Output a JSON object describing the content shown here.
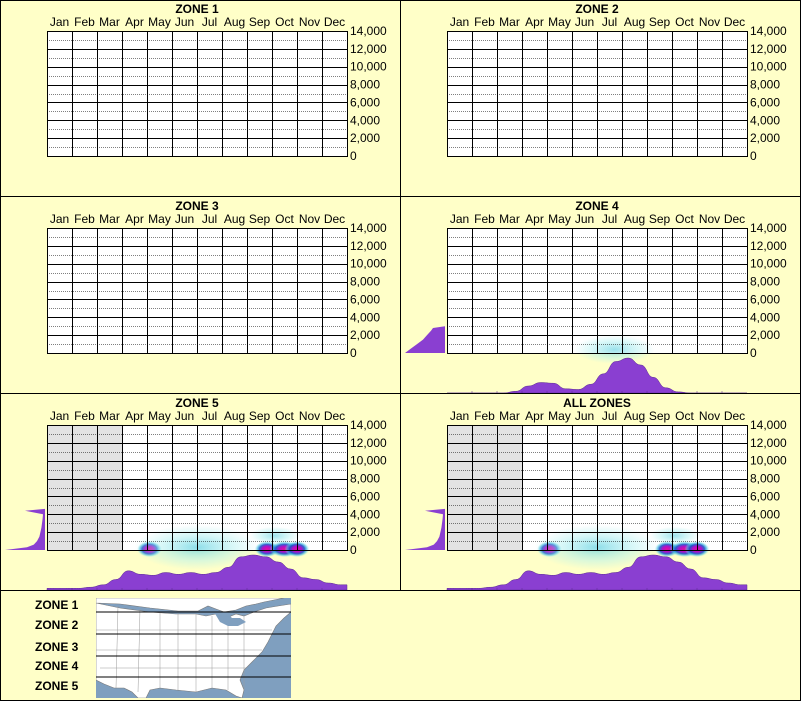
{
  "chart_data": [
    {
      "type": "heatmap",
      "title": "ZONE 1",
      "categories": [
        "Jan",
        "Feb",
        "Mar",
        "Apr",
        "May",
        "Jun",
        "Jul",
        "Aug",
        "Sep",
        "Oct",
        "Nov",
        "Dec"
      ],
      "yticks": [
        "14,000",
        "12,000",
        "10,000",
        "8,000",
        "6,000",
        "4,000",
        "2,000",
        "0"
      ],
      "ylim": [
        0,
        14000
      ],
      "shaded_months": [],
      "elevation_distribution": [],
      "monthly_distribution": [],
      "hotspots": []
    },
    {
      "type": "heatmap",
      "title": "ZONE 2",
      "categories": [
        "Jan",
        "Feb",
        "Mar",
        "Apr",
        "May",
        "Jun",
        "Jul",
        "Aug",
        "Sep",
        "Oct",
        "Nov",
        "Dec"
      ],
      "yticks": [
        "14,000",
        "12,000",
        "10,000",
        "8,000",
        "6,000",
        "4,000",
        "2,000",
        "0"
      ],
      "ylim": [
        0,
        14000
      ],
      "shaded_months": [],
      "elevation_distribution": [],
      "monthly_distribution": [],
      "hotspots": []
    },
    {
      "type": "heatmap",
      "title": "ZONE 3",
      "categories": [
        "Jan",
        "Feb",
        "Mar",
        "Apr",
        "May",
        "Jun",
        "Jul",
        "Aug",
        "Sep",
        "Oct",
        "Nov",
        "Dec"
      ],
      "yticks": [
        "14,000",
        "12,000",
        "10,000",
        "8,000",
        "6,000",
        "4,000",
        "2,000",
        "0"
      ],
      "ylim": [
        0,
        14000
      ],
      "shaded_months": [],
      "elevation_distribution": [],
      "monthly_distribution": [],
      "hotspots": []
    },
    {
      "type": "heatmap",
      "title": "ZONE 4",
      "categories": [
        "Jan",
        "Feb",
        "Mar",
        "Apr",
        "May",
        "Jun",
        "Jul",
        "Aug",
        "Sep",
        "Oct",
        "Nov",
        "Dec"
      ],
      "yticks": [
        "14,000",
        "12,000",
        "10,000",
        "8,000",
        "6,000",
        "4,000",
        "2,000",
        "0"
      ],
      "ylim": [
        0,
        14000
      ],
      "shaded_months": [],
      "elevation_distribution": [
        [
          0,
          1
        ],
        [
          500,
          0.85
        ],
        [
          1000,
          0.7
        ],
        [
          1500,
          0.55
        ],
        [
          2000,
          0.45
        ],
        [
          2500,
          0.35
        ],
        [
          2800,
          0.3
        ],
        [
          3000,
          0
        ]
      ],
      "monthly_distribution": [
        0,
        0,
        0,
        0,
        0,
        0.05,
        0.2,
        0.3,
        0.28,
        0.12,
        0.1,
        0.25,
        0.55,
        0.9,
        1,
        0.8,
        0.45,
        0.15,
        0.03,
        0,
        0,
        0,
        0,
        0
      ],
      "hotspots": [
        {
          "month": 7.2,
          "elev": 400,
          "intensity": 0.35,
          "spread": 1.6
        }
      ]
    },
    {
      "type": "heatmap",
      "title": "ZONE 5",
      "categories": [
        "Jan",
        "Feb",
        "Mar",
        "Apr",
        "May",
        "Jun",
        "Jul",
        "Aug",
        "Sep",
        "Oct",
        "Nov",
        "Dec"
      ],
      "yticks": [
        "14,000",
        "12,000",
        "10,000",
        "8,000",
        "6,000",
        "4,000",
        "2,000",
        "0"
      ],
      "ylim": [
        0,
        14000
      ],
      "shaded_months": [
        1,
        2,
        3
      ],
      "elevation_distribution": [
        [
          0,
          1
        ],
        [
          300,
          0.45
        ],
        [
          600,
          0.28
        ],
        [
          1000,
          0.2
        ],
        [
          1500,
          0.14
        ],
        [
          2500,
          0.09
        ],
        [
          3500,
          0.06
        ],
        [
          4000,
          0.05
        ],
        [
          4400,
          0.5
        ],
        [
          4600,
          0
        ]
      ],
      "monthly_distribution": [
        0.05,
        0.05,
        0.05,
        0.08,
        0.15,
        0.3,
        0.55,
        0.45,
        0.42,
        0.5,
        0.45,
        0.5,
        0.45,
        0.5,
        0.65,
        0.95,
        1,
        0.95,
        0.8,
        0.6,
        0.35,
        0.3,
        0.2,
        0.15
      ],
      "hotspots": [
        {
          "month": 4.6,
          "elev": 100,
          "intensity": 1,
          "spread": 0.5
        },
        {
          "month": 9.3,
          "elev": 100,
          "intensity": 1,
          "spread": 0.5
        },
        {
          "month": 10,
          "elev": 100,
          "intensity": 1,
          "spread": 0.6
        },
        {
          "month": 10.5,
          "elev": 100,
          "intensity": 0.9,
          "spread": 0.5
        },
        {
          "month": 6.5,
          "elev": 300,
          "intensity": 0.55,
          "spread": 2.5
        },
        {
          "month": 9.6,
          "elev": 1600,
          "intensity": 0.3,
          "spread": 1.0
        }
      ]
    },
    {
      "type": "heatmap",
      "title": "ALL ZONES",
      "categories": [
        "Jan",
        "Feb",
        "Mar",
        "Apr",
        "May",
        "Jun",
        "Jul",
        "Aug",
        "Sep",
        "Oct",
        "Nov",
        "Dec"
      ],
      "yticks": [
        "14,000",
        "12,000",
        "10,000",
        "8,000",
        "6,000",
        "4,000",
        "2,000",
        "0"
      ],
      "ylim": [
        0,
        14000
      ],
      "shaded_months": [
        1,
        2,
        3
      ],
      "elevation_distribution": [
        [
          0,
          1
        ],
        [
          300,
          0.45
        ],
        [
          600,
          0.28
        ],
        [
          1000,
          0.2
        ],
        [
          1500,
          0.14
        ],
        [
          2500,
          0.09
        ],
        [
          3500,
          0.06
        ],
        [
          4000,
          0.05
        ],
        [
          4400,
          0.5
        ],
        [
          4600,
          0
        ]
      ],
      "monthly_distribution": [
        0.05,
        0.05,
        0.05,
        0.08,
        0.15,
        0.3,
        0.55,
        0.45,
        0.42,
        0.5,
        0.45,
        0.5,
        0.45,
        0.5,
        0.65,
        0.95,
        1,
        0.95,
        0.8,
        0.6,
        0.35,
        0.3,
        0.2,
        0.15
      ],
      "hotspots": [
        {
          "month": 4.6,
          "elev": 100,
          "intensity": 1,
          "spread": 0.5
        },
        {
          "month": 9.3,
          "elev": 100,
          "intensity": 1,
          "spread": 0.5
        },
        {
          "month": 10,
          "elev": 100,
          "intensity": 1,
          "spread": 0.6
        },
        {
          "month": 10.5,
          "elev": 100,
          "intensity": 0.9,
          "spread": 0.5
        },
        {
          "month": 6.5,
          "elev": 300,
          "intensity": 0.55,
          "spread": 2.5
        },
        {
          "month": 9.6,
          "elev": 1600,
          "intensity": 0.3,
          "spread": 1.0
        }
      ]
    }
  ],
  "legend": {
    "zones": [
      "ZONE 1",
      "ZONE 2",
      "ZONE 3",
      "ZONE 4",
      "ZONE 5"
    ],
    "map_icon": "us-map-icon"
  },
  "colors": {
    "background": "#ffffc8",
    "grid": "#000000",
    "distribution": "#8a3fd1",
    "heat_low": "#aef0f0",
    "heat_mid": "#1e50c8",
    "heat_high": "#e0109a",
    "shaded_month": "#e3e3e3",
    "map_water": "#7f9fbf",
    "map_land": "#ffffff"
  }
}
